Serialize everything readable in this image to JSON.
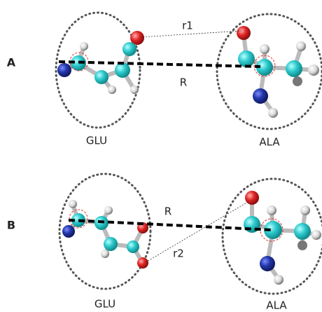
{
  "panels": [
    {
      "label": "A",
      "left": "GLU",
      "right": "ALA",
      "distance": "R",
      "contact": "r1"
    },
    {
      "label": "B",
      "left": "GLU",
      "right": "ALA",
      "distance": "R",
      "contact": "r2"
    }
  ]
}
